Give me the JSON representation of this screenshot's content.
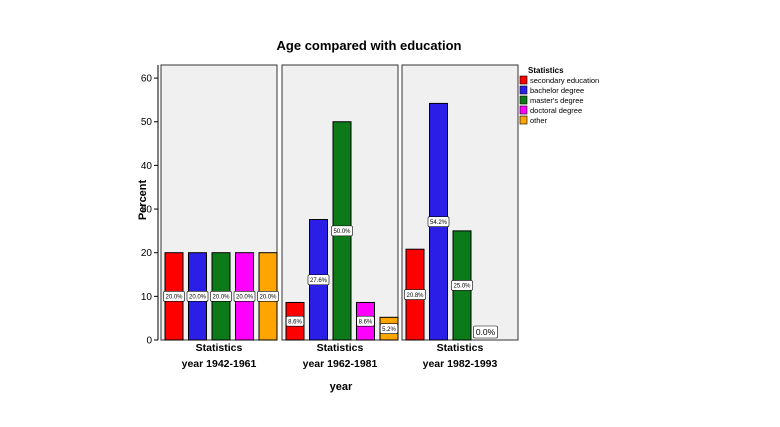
{
  "chart_data": {
    "type": "bar",
    "title": "Age compared with education",
    "xlabel": "year",
    "ylabel": "Percent",
    "ylim": [
      0,
      63
    ],
    "yticks": [
      0,
      10,
      20,
      30,
      40,
      50,
      60
    ],
    "grid": false,
    "legend_position": "top-right",
    "legend": {
      "title": "Statistics",
      "entries": [
        "secondary education",
        "bachelor degree",
        "master's degree",
        "doctoral degree",
        "other"
      ]
    },
    "colors": [
      "#ff0000",
      "#2b1ee6",
      "#0d7a1a",
      "#ff00ff",
      "#ffa500"
    ],
    "panels": [
      {
        "category_label": "Statistics",
        "panel_label": "year 1942-1961",
        "values": [
          20.0,
          20.0,
          20.0,
          20.0,
          20.0
        ],
        "data_labels": [
          "20.0%",
          "20.0%",
          "20.0%",
          "20.0%",
          "20.0%"
        ]
      },
      {
        "category_label": "Statistics",
        "panel_label": "year 1962-1981",
        "values": [
          8.6,
          27.6,
          50.0,
          8.6,
          5.2
        ],
        "data_labels": [
          "8.6%",
          "27.6%",
          "50.0%",
          "8.6%",
          "5.2%"
        ]
      },
      {
        "category_label": "Statistics",
        "panel_label": "year 1982-1993",
        "values": [
          20.8,
          54.2,
          25.0,
          0.0,
          0.0
        ],
        "data_labels": [
          "20.8%",
          "54.2%",
          "25.0%",
          "0.0%",
          ""
        ]
      }
    ]
  }
}
